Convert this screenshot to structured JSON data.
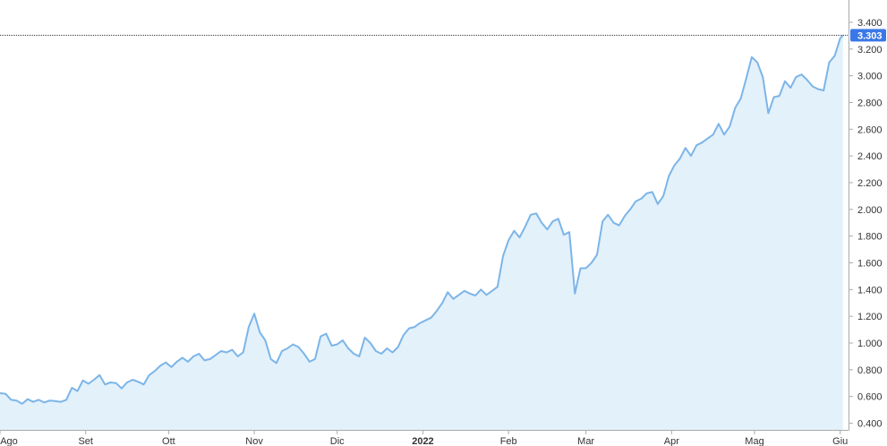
{
  "chart_data": {
    "type": "area",
    "title": "",
    "xlabel": "",
    "ylabel": "",
    "x_ticks": [
      {
        "label": "Ago",
        "date": "2021-08-01"
      },
      {
        "label": "Set",
        "date": "2021-09-01"
      },
      {
        "label": "Ott",
        "date": "2021-10-01"
      },
      {
        "label": "Nov",
        "date": "2021-11-01"
      },
      {
        "label": "Dic",
        "date": "2021-12-01"
      },
      {
        "label": "2022",
        "date": "2022-01-01",
        "bold": true
      },
      {
        "label": "Feb",
        "date": "2022-02-01"
      },
      {
        "label": "Mar",
        "date": "2022-03-01"
      },
      {
        "label": "Apr",
        "date": "2022-04-01"
      },
      {
        "label": "Mag",
        "date": "2022-05-01"
      },
      {
        "label": "Giu",
        "date": "2022-06-01"
      }
    ],
    "y_ticks": [
      {
        "label": "3.400",
        "value": 3400
      },
      {
        "label": "3.200",
        "value": 3200
      },
      {
        "label": "3.000",
        "value": 3000
      },
      {
        "label": "2.800",
        "value": 2800
      },
      {
        "label": "2.600",
        "value": 2600
      },
      {
        "label": "2.400",
        "value": 2400
      },
      {
        "label": "2.200",
        "value": 2200
      },
      {
        "label": "2.000",
        "value": 2000
      },
      {
        "label": "1.800",
        "value": 1800
      },
      {
        "label": "1.600",
        "value": 1600
      },
      {
        "label": "1.400",
        "value": 1400
      },
      {
        "label": "1.200",
        "value": 1200
      },
      {
        "label": "1.000",
        "value": 1000
      },
      {
        "label": "0.800",
        "value": 800
      },
      {
        "label": "0.600",
        "value": 600
      },
      {
        "label": "0.400",
        "value": 400
      }
    ],
    "xlim": [
      "2021-08-01",
      "2022-06-04"
    ],
    "ylim": [
      350,
      3500
    ],
    "last_value": {
      "label": "3.303",
      "value": 3303
    },
    "series": [
      {
        "points": [
          [
            "2021-08-01",
            625
          ],
          [
            "2021-08-03",
            620
          ],
          [
            "2021-08-05",
            575
          ],
          [
            "2021-08-07",
            570
          ],
          [
            "2021-08-09",
            545
          ],
          [
            "2021-08-11",
            580
          ],
          [
            "2021-08-13",
            560
          ],
          [
            "2021-08-15",
            575
          ],
          [
            "2021-08-17",
            555
          ],
          [
            "2021-08-19",
            570
          ],
          [
            "2021-08-21",
            565
          ],
          [
            "2021-08-23",
            560
          ],
          [
            "2021-08-25",
            575
          ],
          [
            "2021-08-27",
            665
          ],
          [
            "2021-08-29",
            640
          ],
          [
            "2021-08-31",
            720
          ],
          [
            "2021-09-02",
            695
          ],
          [
            "2021-09-04",
            725
          ],
          [
            "2021-09-06",
            760
          ],
          [
            "2021-09-08",
            690
          ],
          [
            "2021-09-10",
            705
          ],
          [
            "2021-09-12",
            700
          ],
          [
            "2021-09-14",
            660
          ],
          [
            "2021-09-16",
            705
          ],
          [
            "2021-09-18",
            725
          ],
          [
            "2021-09-20",
            710
          ],
          [
            "2021-09-22",
            690
          ],
          [
            "2021-09-24",
            760
          ],
          [
            "2021-09-26",
            790
          ],
          [
            "2021-09-28",
            830
          ],
          [
            "2021-09-30",
            855
          ],
          [
            "2021-10-02",
            820
          ],
          [
            "2021-10-04",
            860
          ],
          [
            "2021-10-06",
            890
          ],
          [
            "2021-10-08",
            860
          ],
          [
            "2021-10-10",
            900
          ],
          [
            "2021-10-12",
            920
          ],
          [
            "2021-10-14",
            870
          ],
          [
            "2021-10-16",
            880
          ],
          [
            "2021-10-18",
            910
          ],
          [
            "2021-10-20",
            940
          ],
          [
            "2021-10-22",
            930
          ],
          [
            "2021-10-24",
            950
          ],
          [
            "2021-10-26",
            900
          ],
          [
            "2021-10-28",
            930
          ],
          [
            "2021-10-30",
            1120
          ],
          [
            "2021-11-01",
            1220
          ],
          [
            "2021-11-03",
            1080
          ],
          [
            "2021-11-05",
            1020
          ],
          [
            "2021-11-07",
            880
          ],
          [
            "2021-11-09",
            850
          ],
          [
            "2021-11-11",
            940
          ],
          [
            "2021-11-13",
            960
          ],
          [
            "2021-11-15",
            990
          ],
          [
            "2021-11-17",
            970
          ],
          [
            "2021-11-19",
            920
          ],
          [
            "2021-11-21",
            860
          ],
          [
            "2021-11-23",
            880
          ],
          [
            "2021-11-25",
            1050
          ],
          [
            "2021-11-27",
            1070
          ],
          [
            "2021-11-29",
            980
          ],
          [
            "2021-12-01",
            990
          ],
          [
            "2021-12-03",
            1020
          ],
          [
            "2021-12-05",
            960
          ],
          [
            "2021-12-07",
            920
          ],
          [
            "2021-12-09",
            900
          ],
          [
            "2021-12-11",
            1040
          ],
          [
            "2021-12-13",
            1000
          ],
          [
            "2021-12-15",
            940
          ],
          [
            "2021-12-17",
            920
          ],
          [
            "2021-12-19",
            960
          ],
          [
            "2021-12-21",
            930
          ],
          [
            "2021-12-23",
            970
          ],
          [
            "2021-12-25",
            1060
          ],
          [
            "2021-12-27",
            1110
          ],
          [
            "2021-12-29",
            1120
          ],
          [
            "2021-12-31",
            1150
          ],
          [
            "2022-01-02",
            1170
          ],
          [
            "2022-01-04",
            1190
          ],
          [
            "2022-01-06",
            1240
          ],
          [
            "2022-01-08",
            1300
          ],
          [
            "2022-01-10",
            1380
          ],
          [
            "2022-01-12",
            1330
          ],
          [
            "2022-01-14",
            1360
          ],
          [
            "2022-01-16",
            1390
          ],
          [
            "2022-01-18",
            1370
          ],
          [
            "2022-01-20",
            1355
          ],
          [
            "2022-01-22",
            1400
          ],
          [
            "2022-01-24",
            1360
          ],
          [
            "2022-01-26",
            1390
          ],
          [
            "2022-01-28",
            1420
          ],
          [
            "2022-01-30",
            1650
          ],
          [
            "2022-02-01",
            1770
          ],
          [
            "2022-02-03",
            1840
          ],
          [
            "2022-02-05",
            1790
          ],
          [
            "2022-02-07",
            1870
          ],
          [
            "2022-02-09",
            1960
          ],
          [
            "2022-02-11",
            1970
          ],
          [
            "2022-02-13",
            1900
          ],
          [
            "2022-02-15",
            1850
          ],
          [
            "2022-02-17",
            1910
          ],
          [
            "2022-02-19",
            1930
          ],
          [
            "2022-02-21",
            1810
          ],
          [
            "2022-02-23",
            1830
          ],
          [
            "2022-02-25",
            1370
          ],
          [
            "2022-02-27",
            1560
          ],
          [
            "2022-03-01",
            1560
          ],
          [
            "2022-03-03",
            1600
          ],
          [
            "2022-03-05",
            1660
          ],
          [
            "2022-03-07",
            1910
          ],
          [
            "2022-03-09",
            1960
          ],
          [
            "2022-03-11",
            1900
          ],
          [
            "2022-03-13",
            1880
          ],
          [
            "2022-03-15",
            1950
          ],
          [
            "2022-03-17",
            2000
          ],
          [
            "2022-03-19",
            2060
          ],
          [
            "2022-03-21",
            2080
          ],
          [
            "2022-03-23",
            2120
          ],
          [
            "2022-03-25",
            2130
          ],
          [
            "2022-03-27",
            2040
          ],
          [
            "2022-03-29",
            2100
          ],
          [
            "2022-03-31",
            2250
          ],
          [
            "2022-04-02",
            2330
          ],
          [
            "2022-04-04",
            2380
          ],
          [
            "2022-04-06",
            2460
          ],
          [
            "2022-04-08",
            2400
          ],
          [
            "2022-04-10",
            2480
          ],
          [
            "2022-04-12",
            2500
          ],
          [
            "2022-04-14",
            2530
          ],
          [
            "2022-04-16",
            2560
          ],
          [
            "2022-04-18",
            2640
          ],
          [
            "2022-04-20",
            2560
          ],
          [
            "2022-04-22",
            2620
          ],
          [
            "2022-04-24",
            2760
          ],
          [
            "2022-04-26",
            2830
          ],
          [
            "2022-04-28",
            2980
          ],
          [
            "2022-04-30",
            3140
          ],
          [
            "2022-05-02",
            3100
          ],
          [
            "2022-05-04",
            2990
          ],
          [
            "2022-05-06",
            2720
          ],
          [
            "2022-05-08",
            2840
          ],
          [
            "2022-05-10",
            2850
          ],
          [
            "2022-05-12",
            2960
          ],
          [
            "2022-05-14",
            2910
          ],
          [
            "2022-05-16",
            2990
          ],
          [
            "2022-05-18",
            3010
          ],
          [
            "2022-05-20",
            2970
          ],
          [
            "2022-05-22",
            2920
          ],
          [
            "2022-05-24",
            2900
          ],
          [
            "2022-05-26",
            2890
          ],
          [
            "2022-05-28",
            3100
          ],
          [
            "2022-05-30",
            3150
          ],
          [
            "2022-06-01",
            3280
          ],
          [
            "2022-06-02",
            3303
          ]
        ]
      }
    ],
    "grid": false,
    "colors": {
      "line": "#7cb5e8",
      "fill": "#e3f1fb",
      "axis": "#aaaaaa",
      "label_bg": "#3b78e7",
      "last_line": "#333333"
    }
  }
}
